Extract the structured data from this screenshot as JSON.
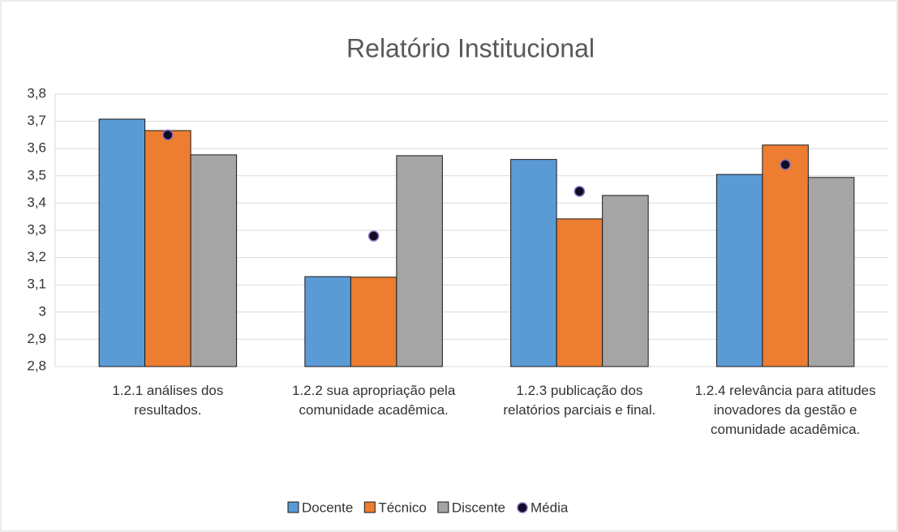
{
  "chart_data": {
    "type": "bar",
    "title": "Relatório Institucional",
    "categories": [
      "1.2.1 análises dos resultados.",
      "1.2.2 sua apropriação pela comunidade acadêmica.",
      "1.2.3 publicação dos relatórios parciais e final.",
      "1.2.4 relevância para atitudes inovadores da gestão e comunidade acadêmica."
    ],
    "series": [
      {
        "name": "Docente",
        "color": "#5b9bd5",
        "values": [
          3.708,
          3.13,
          3.56,
          3.505
        ]
      },
      {
        "name": "Técnico",
        "color": "#ed7d31",
        "values": [
          3.666,
          3.128,
          3.342,
          3.613
        ]
      },
      {
        "name": "Discente",
        "color": "#a5a5a5",
        "values": [
          3.577,
          3.574,
          3.428,
          3.494
        ]
      },
      {
        "name": "Média",
        "color": "#0d0d26",
        "type": "scatter",
        "values": [
          3.65,
          3.279,
          3.443,
          3.541
        ]
      }
    ],
    "ylim": [
      2.8,
      3.8
    ],
    "yticks": [
      {
        "value": 2.8,
        "label": "2,8"
      },
      {
        "value": 2.9,
        "label": "2,9"
      },
      3,
      {
        "value": 3.1,
        "label": "3,1"
      },
      {
        "value": 3.2,
        "label": "3,2"
      },
      {
        "value": 3.3,
        "label": "3,3"
      },
      {
        "value": 3.4,
        "label": "3,4"
      },
      {
        "value": 3.5,
        "label": "3,5"
      },
      {
        "value": 3.6,
        "label": "3,6"
      },
      {
        "value": 3.7,
        "label": "3,7"
      },
      {
        "value": 3.8,
        "label": "3,8"
      }
    ],
    "grid": true,
    "legend": "bottom"
  }
}
